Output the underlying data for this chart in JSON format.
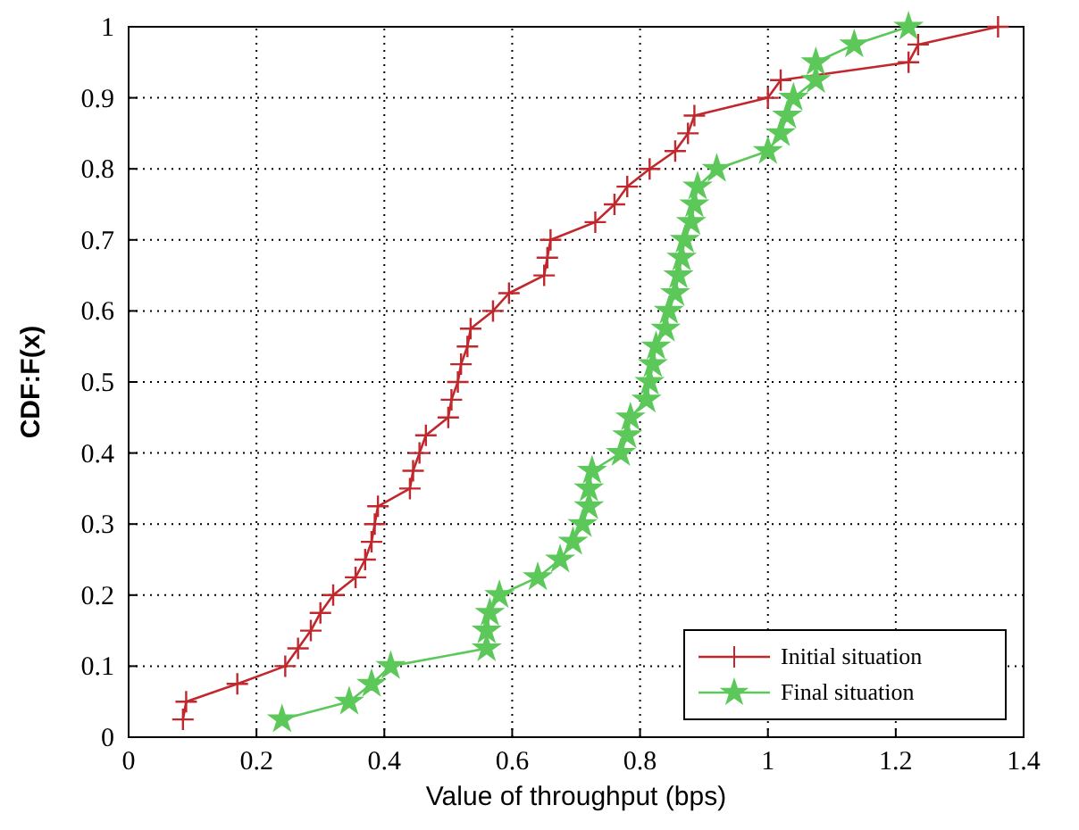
{
  "chart_data": {
    "type": "line",
    "xlabel": "Value of throughput (bps)",
    "ylabel": "CDF:F(x)",
    "xlim": [
      0,
      1.4
    ],
    "ylim": [
      0,
      1
    ],
    "xticks": [
      0,
      0.2,
      0.4,
      0.6,
      0.8,
      1,
      1.2,
      1.4
    ],
    "yticks": [
      0,
      0.1,
      0.2,
      0.3,
      0.4,
      0.5,
      0.6,
      0.7,
      0.8,
      0.9,
      1
    ],
    "grid": true,
    "legend": "bottom right",
    "line_style": "solid",
    "series": [
      {
        "name": "Initial situation",
        "color": "#c0282d",
        "marker": "cross",
        "x": [
          0.085,
          0.09,
          0.17,
          0.245,
          0.265,
          0.285,
          0.3,
          0.32,
          0.355,
          0.37,
          0.38,
          0.385,
          0.39,
          0.44,
          0.445,
          0.455,
          0.465,
          0.5,
          0.505,
          0.515,
          0.52,
          0.53,
          0.535,
          0.57,
          0.595,
          0.65,
          0.655,
          0.66,
          0.73,
          0.76,
          0.78,
          0.815,
          0.855,
          0.875,
          0.885,
          1.0,
          1.02,
          1.22,
          1.235,
          1.36
        ],
        "values": [
          0.025,
          0.05,
          0.075,
          0.1,
          0.125,
          0.15,
          0.175,
          0.2,
          0.225,
          0.25,
          0.275,
          0.3,
          0.325,
          0.35,
          0.375,
          0.4,
          0.425,
          0.45,
          0.475,
          0.5,
          0.525,
          0.55,
          0.575,
          0.6,
          0.625,
          0.65,
          0.675,
          0.7,
          0.725,
          0.75,
          0.775,
          0.8,
          0.825,
          0.85,
          0.875,
          0.9,
          0.925,
          0.95,
          0.975,
          1
        ]
      },
      {
        "name": "Final situation",
        "color": "#5cc85a",
        "marker": "star",
        "x": [
          0.24,
          0.345,
          0.38,
          0.41,
          0.56,
          0.56,
          0.565,
          0.58,
          0.64,
          0.675,
          0.695,
          0.71,
          0.72,
          0.72,
          0.725,
          0.77,
          0.78,
          0.785,
          0.81,
          0.815,
          0.82,
          0.825,
          0.84,
          0.845,
          0.855,
          0.86,
          0.865,
          0.87,
          0.88,
          0.885,
          0.89,
          0.92,
          1.0,
          1.02,
          1.03,
          1.04,
          1.075,
          1.075,
          1.135,
          1.22
        ],
        "values": [
          0.025,
          0.05,
          0.075,
          0.1,
          0.125,
          0.15,
          0.175,
          0.2,
          0.225,
          0.25,
          0.275,
          0.3,
          0.325,
          0.35,
          0.375,
          0.4,
          0.425,
          0.45,
          0.475,
          0.5,
          0.525,
          0.55,
          0.575,
          0.6,
          0.625,
          0.65,
          0.675,
          0.7,
          0.725,
          0.75,
          0.775,
          0.8,
          0.825,
          0.85,
          0.875,
          0.9,
          0.925,
          0.95,
          0.975,
          1
        ]
      }
    ]
  }
}
